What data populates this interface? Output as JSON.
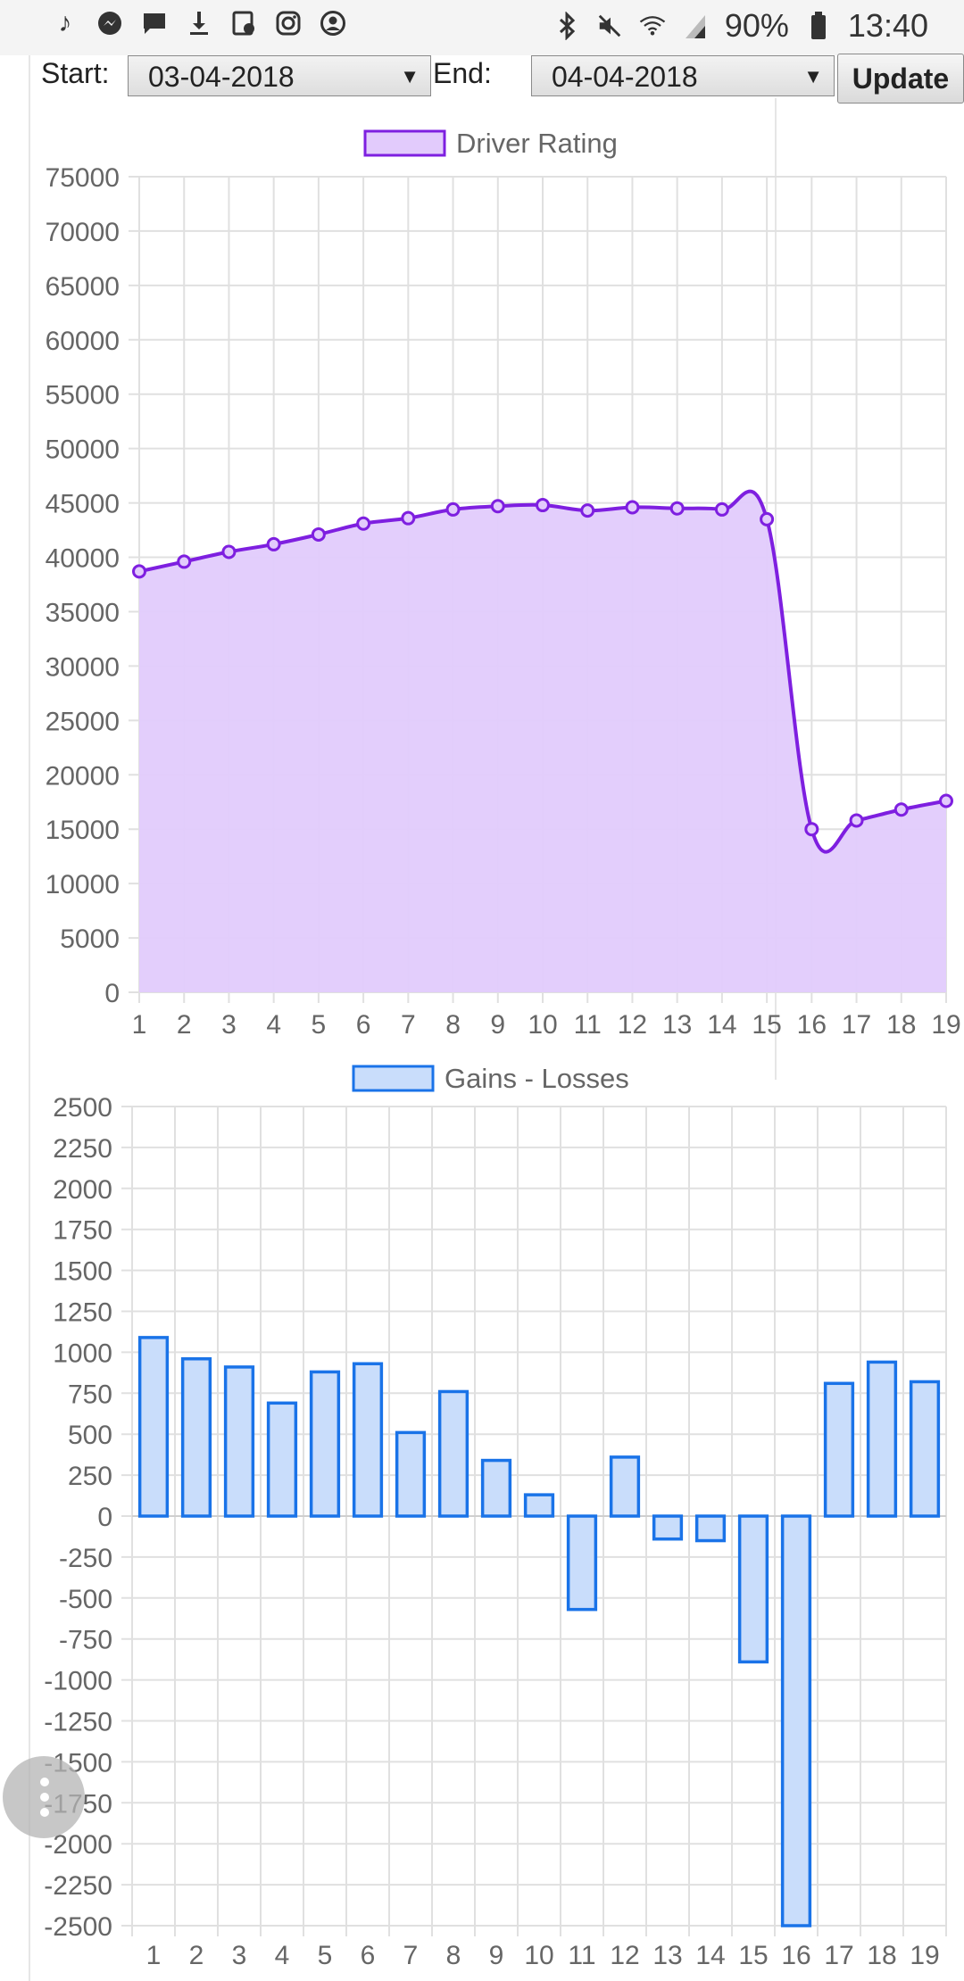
{
  "status_bar": {
    "left_icons": [
      "music-note-icon",
      "messenger-icon",
      "chat-icon",
      "download-icon",
      "calendar-icon",
      "instagram-icon",
      "account-circle-icon"
    ],
    "right_icons": [
      "bluetooth-icon",
      "mute-icon",
      "wifi-icon",
      "signal-icon"
    ],
    "battery_percent": "90%",
    "time": "13:40"
  },
  "filter": {
    "start_label": "Start:",
    "start_value": "03-04-2018",
    "end_label": "End:",
    "end_value": "04-04-2018",
    "update_label": "Update"
  },
  "colors": {
    "rating_line": "#7e1fe0",
    "rating_fill": "#e2cbfc",
    "gains_stroke": "#1a73e8",
    "gains_fill": "#c9ddfb",
    "grid": "#e0e0e0"
  },
  "chart_data": [
    {
      "type": "area",
      "legend": "Driver Rating",
      "legend_position": "top",
      "categories": [
        "1",
        "2",
        "3",
        "4",
        "5",
        "6",
        "7",
        "8",
        "9",
        "10",
        "11",
        "12",
        "13",
        "14",
        "15",
        "16",
        "17",
        "18",
        "19"
      ],
      "values": [
        38700,
        39600,
        40500,
        41200,
        42100,
        43100,
        43600,
        44400,
        44700,
        44800,
        44300,
        44600,
        44500,
        44400,
        43500,
        15000,
        15800,
        16800,
        17600
      ],
      "ylim": [
        0,
        75000
      ],
      "yticks": [
        "75000",
        "70000",
        "65000",
        "60000",
        "55000",
        "50000",
        "45000",
        "40000",
        "35000",
        "30000",
        "25000",
        "20000",
        "15000",
        "10000",
        "5000",
        "0"
      ],
      "grid": true
    },
    {
      "type": "bar",
      "legend": "Gains - Losses",
      "legend_position": "top",
      "categories": [
        "1",
        "2",
        "3",
        "4",
        "5",
        "6",
        "7",
        "8",
        "9",
        "10",
        "11",
        "12",
        "13",
        "14",
        "15",
        "16",
        "17",
        "18",
        "19"
      ],
      "values": [
        1090,
        960,
        910,
        690,
        880,
        930,
        510,
        760,
        340,
        130,
        -570,
        360,
        -140,
        -150,
        -890,
        -2500,
        810,
        940,
        820
      ],
      "ylim": [
        -2500,
        2500
      ],
      "yticks": [
        "2500",
        "2250",
        "2000",
        "1750",
        "1500",
        "1250",
        "1000",
        "750",
        "500",
        "250",
        "0",
        "-250",
        "-500",
        "-750",
        "-1000",
        "-1250",
        "-1500",
        "-1750",
        "-2000",
        "-2250",
        "-2500"
      ],
      "grid": true
    }
  ]
}
